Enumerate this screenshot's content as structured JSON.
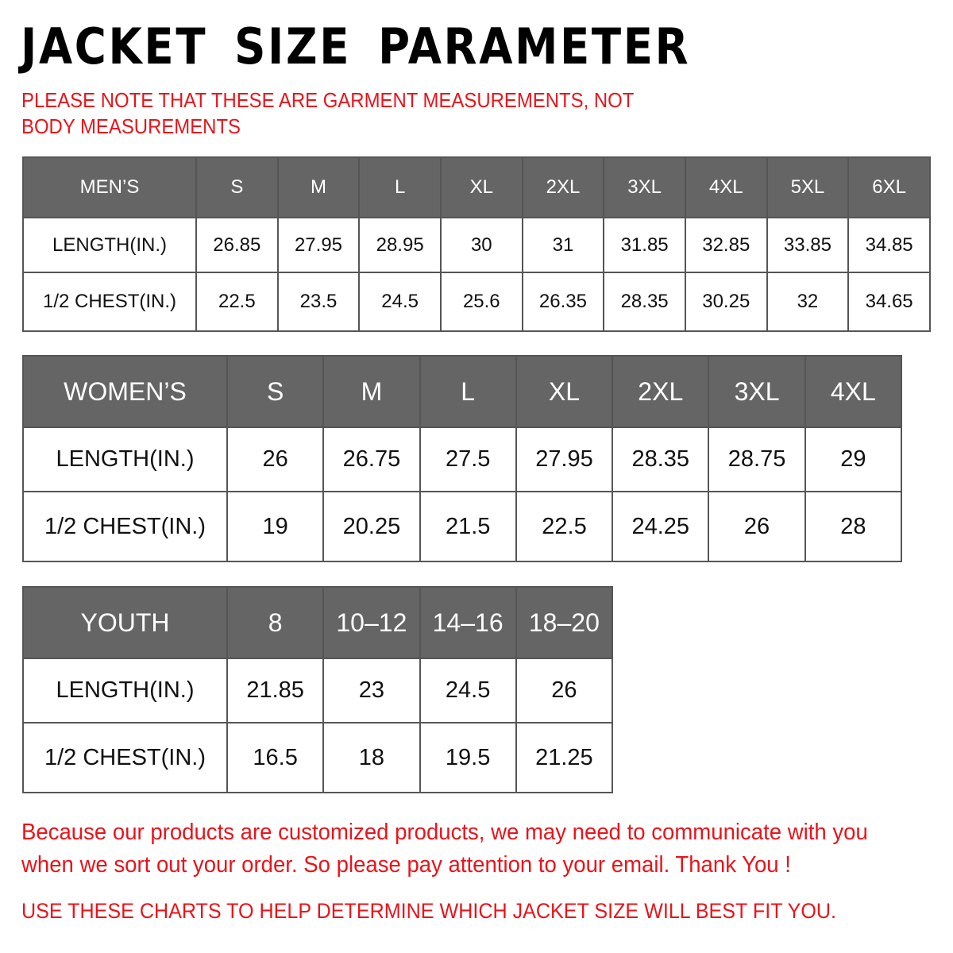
{
  "title": "JACKET SIZE PARAMETER",
  "note": "PLEASE NOTE THAT THESE ARE GARMENT MEASUREMENTS, NOT BODY MEASUREMENTS",
  "colors": {
    "header_bg": "#656565",
    "accent_red": "#e8141b"
  },
  "mens": {
    "header": [
      "MEN’S",
      "S",
      "M",
      "L",
      "XL",
      "2XL",
      "3XL",
      "4XL",
      "5XL",
      "6XL"
    ],
    "rows": [
      [
        "LENGTH(IN.)",
        "26.85",
        "27.95",
        "28.95",
        "30",
        "31",
        "31.85",
        "32.85",
        "33.85",
        "34.85"
      ],
      [
        "1/2 CHEST(IN.)",
        "22.5",
        "23.5",
        "24.5",
        "25.6",
        "26.35",
        "28.35",
        "30.25",
        "32",
        "34.65"
      ]
    ]
  },
  "womens": {
    "header": [
      "WOMEN’S",
      "S",
      "M",
      "L",
      "XL",
      "2XL",
      "3XL",
      "4XL"
    ],
    "rows": [
      [
        "LENGTH(IN.)",
        "26",
        "26.75",
        "27.5",
        "27.95",
        "28.35",
        "28.75",
        "29"
      ],
      [
        "1/2 CHEST(IN.)",
        "19",
        "20.25",
        "21.5",
        "22.5",
        "24.25",
        "26",
        "28"
      ]
    ]
  },
  "youth": {
    "header": [
      "YOUTH",
      "8",
      "10–12",
      "14–16",
      "18–20"
    ],
    "rows": [
      [
        "LENGTH(IN.)",
        "21.85",
        "23",
        "24.5",
        "26"
      ],
      [
        "1/2 CHEST(IN.)",
        "16.5",
        "18",
        "19.5",
        "21.25"
      ]
    ]
  },
  "footer": "Because our products are customized products, we may need to communicate with you when we sort out your order. So please pay attention to your email. Thank You !",
  "footer2": "USE THESE CHARTS TO HELP DETERMINE WHICH JACKET SIZE WILL BEST FIT YOU."
}
